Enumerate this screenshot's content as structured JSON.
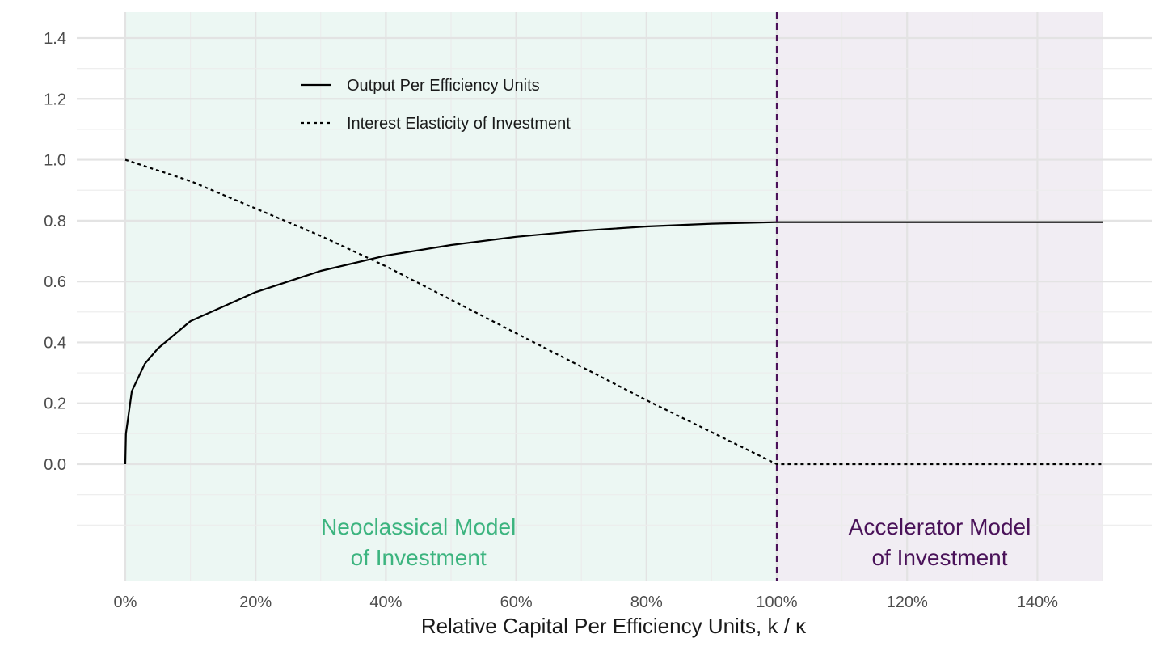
{
  "chart_data": {
    "type": "line",
    "title": "",
    "xlabel": "Relative Capital Per Efficiency Units, k / κ",
    "ylabel": "",
    "xlim": [
      0,
      1.5
    ],
    "ylim": [
      -0.2,
      1.4
    ],
    "grid": true,
    "legend_position": "top-left",
    "x_ticks": [
      0,
      0.2,
      0.4,
      0.6,
      0.8,
      1.0,
      1.2,
      1.4
    ],
    "x_tick_labels": [
      "0%",
      "20%",
      "40%",
      "60%",
      "80%",
      "100%",
      "120%",
      "140%"
    ],
    "y_ticks": [
      0,
      0.2,
      0.4,
      0.6,
      0.8,
      1.0,
      1.2,
      1.4
    ],
    "y_tick_labels": [
      "0.0",
      "0.2",
      "0.4",
      "0.6",
      "0.8",
      "1.0",
      "1.2",
      "1.4"
    ],
    "series": [
      {
        "name": "Output Per Efficiency Units",
        "line_style": "solid",
        "color": "#000000",
        "x": [
          0,
          0.001,
          0.01,
          0.03,
          0.05,
          0.1,
          0.2,
          0.3,
          0.4,
          0.5,
          0.6,
          0.7,
          0.8,
          0.9,
          1.0,
          1.1,
          1.2,
          1.3,
          1.4,
          1.5
        ],
        "y": [
          0,
          0.1,
          0.24,
          0.33,
          0.38,
          0.47,
          0.565,
          0.635,
          0.685,
          0.72,
          0.747,
          0.767,
          0.781,
          0.79,
          0.795,
          0.795,
          0.795,
          0.795,
          0.795,
          0.795
        ]
      },
      {
        "name": "Interest Elasticity of Investment",
        "line_style": "dotted",
        "color": "#000000",
        "x": [
          0,
          0.1,
          0.2,
          0.3,
          0.4,
          0.5,
          0.6,
          0.7,
          0.8,
          0.9,
          1.0,
          1.1,
          1.2,
          1.3,
          1.4,
          1.5
        ],
        "y": [
          1.0,
          0.93,
          0.84,
          0.75,
          0.65,
          0.54,
          0.43,
          0.32,
          0.21,
          0.105,
          0,
          0,
          0,
          0,
          0,
          0
        ]
      }
    ],
    "vline": {
      "x": 1.0,
      "style": "dashed",
      "color": "#4a1259"
    },
    "regions": [
      {
        "x_start": 0,
        "x_end": 1.0,
        "fill": "#ecf7f3",
        "text_color": "#3cb47f",
        "label_x": 0.45,
        "label_line1": "Neoclassical Model",
        "label_line2": "of Investment"
      },
      {
        "x_start": 1.0,
        "x_end": 1.5,
        "fill": "#f1edf3",
        "text_color": "#4a1259",
        "label_x": 1.25,
        "label_line1": "Accelerator Model",
        "label_line2": "of Investment"
      }
    ]
  }
}
